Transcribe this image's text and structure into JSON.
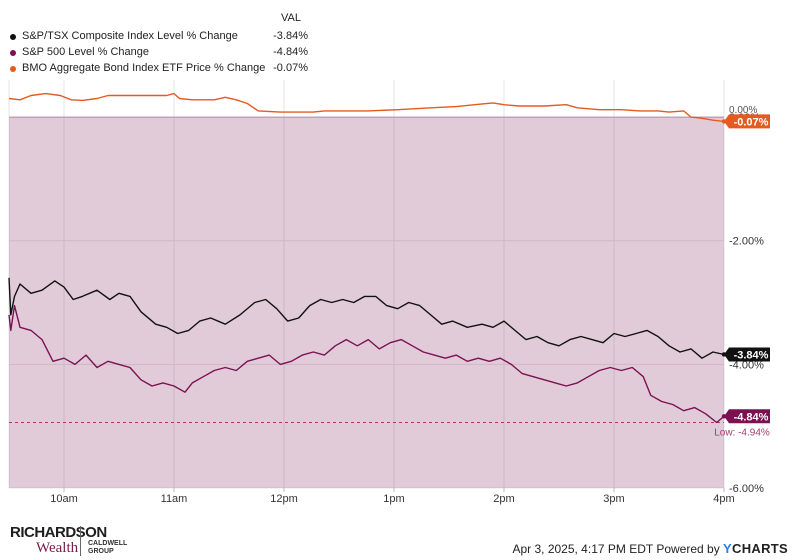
{
  "legend": {
    "header": "VAL",
    "items": [
      {
        "label": "S&P/TSX Composite Index Level % Change",
        "value": "-3.84%",
        "color": "#111111"
      },
      {
        "label": "S&P 500 Level % Change",
        "value": "-4.84%",
        "color": "#7b1151"
      },
      {
        "label": "BMO Aggregate Bond Index ETF Price % Change",
        "value": "-0.07%",
        "color": "#e55a1f"
      }
    ]
  },
  "chart_data": {
    "type": "line",
    "x_ticks": [
      "10am",
      "11am",
      "12pm",
      "1pm",
      "2pm",
      "3pm",
      "4pm"
    ],
    "y_ticks": [
      "0.00%",
      "-2.00%",
      "-4.00%",
      "-6.00%"
    ],
    "ylim": [
      -6.0,
      0.6
    ],
    "xlim": [
      "9:30",
      "16:00"
    ],
    "grid": true,
    "series": [
      {
        "name": "S&P/TSX Composite Index Level % Change",
        "color": "#111111",
        "end_label": "-3.84%",
        "points": [
          [
            "9:30",
            -2.6
          ],
          [
            "9:31",
            -3.2
          ],
          [
            "9:33",
            -2.9
          ],
          [
            "9:36",
            -2.7
          ],
          [
            "9:42",
            -2.85
          ],
          [
            "9:48",
            -2.8
          ],
          [
            "9:55",
            -2.65
          ],
          [
            "10:00",
            -2.75
          ],
          [
            "10:05",
            -2.95
          ],
          [
            "10:10",
            -2.9
          ],
          [
            "10:18",
            -2.8
          ],
          [
            "10:25",
            -2.95
          ],
          [
            "10:30",
            -2.85
          ],
          [
            "10:36",
            -2.9
          ],
          [
            "10:42",
            -3.15
          ],
          [
            "10:50",
            -3.35
          ],
          [
            "10:56",
            -3.4
          ],
          [
            "11:02",
            -3.5
          ],
          [
            "11:08",
            -3.45
          ],
          [
            "11:14",
            -3.3
          ],
          [
            "11:20",
            -3.25
          ],
          [
            "11:28",
            -3.35
          ],
          [
            "11:36",
            -3.2
          ],
          [
            "11:44",
            -3.0
          ],
          [
            "11:50",
            -2.95
          ],
          [
            "11:56",
            -3.1
          ],
          [
            "12:02",
            -3.3
          ],
          [
            "12:08",
            -3.25
          ],
          [
            "12:14",
            -3.05
          ],
          [
            "12:20",
            -2.95
          ],
          [
            "12:26",
            -3.0
          ],
          [
            "12:32",
            -2.95
          ],
          [
            "12:38",
            -3.0
          ],
          [
            "12:44",
            -2.9
          ],
          [
            "12:50",
            -2.9
          ],
          [
            "12:56",
            -3.05
          ],
          [
            "13:02",
            -3.1
          ],
          [
            "13:08",
            -3.0
          ],
          [
            "13:14",
            -3.05
          ],
          [
            "13:20",
            -3.2
          ],
          [
            "13:26",
            -3.35
          ],
          [
            "13:32",
            -3.3
          ],
          [
            "13:40",
            -3.4
          ],
          [
            "13:48",
            -3.35
          ],
          [
            "13:54",
            -3.4
          ],
          [
            "14:00",
            -3.3
          ],
          [
            "14:06",
            -3.45
          ],
          [
            "14:12",
            -3.6
          ],
          [
            "14:18",
            -3.55
          ],
          [
            "14:24",
            -3.65
          ],
          [
            "14:30",
            -3.7
          ],
          [
            "14:36",
            -3.6
          ],
          [
            "14:42",
            -3.55
          ],
          [
            "14:48",
            -3.6
          ],
          [
            "14:54",
            -3.65
          ],
          [
            "15:00",
            -3.5
          ],
          [
            "15:06",
            -3.55
          ],
          [
            "15:12",
            -3.5
          ],
          [
            "15:18",
            -3.45
          ],
          [
            "15:24",
            -3.55
          ],
          [
            "15:30",
            -3.7
          ],
          [
            "15:36",
            -3.8
          ],
          [
            "15:42",
            -3.75
          ],
          [
            "15:48",
            -3.9
          ],
          [
            "15:54",
            -3.8
          ],
          [
            "16:00",
            -3.84
          ]
        ]
      },
      {
        "name": "S&P 500 Level % Change",
        "color": "#7b1151",
        "end_label": "-4.84%",
        "points": [
          [
            "9:30",
            -3.2
          ],
          [
            "9:31",
            -3.45
          ],
          [
            "9:33",
            -3.05
          ],
          [
            "9:36",
            -3.4
          ],
          [
            "9:42",
            -3.45
          ],
          [
            "9:48",
            -3.6
          ],
          [
            "9:54",
            -3.95
          ],
          [
            "10:00",
            -3.9
          ],
          [
            "10:06",
            -4.0
          ],
          [
            "10:12",
            -3.85
          ],
          [
            "10:18",
            -4.05
          ],
          [
            "10:24",
            -3.95
          ],
          [
            "10:30",
            -4.0
          ],
          [
            "10:36",
            -4.05
          ],
          [
            "10:42",
            -4.25
          ],
          [
            "10:48",
            -4.35
          ],
          [
            "10:54",
            -4.3
          ],
          [
            "11:00",
            -4.35
          ],
          [
            "11:06",
            -4.45
          ],
          [
            "11:10",
            -4.3
          ],
          [
            "11:16",
            -4.2
          ],
          [
            "11:22",
            -4.1
          ],
          [
            "11:28",
            -4.05
          ],
          [
            "11:34",
            -4.1
          ],
          [
            "11:40",
            -3.95
          ],
          [
            "11:46",
            -3.9
          ],
          [
            "11:52",
            -3.85
          ],
          [
            "11:58",
            -4.0
          ],
          [
            "12:04",
            -3.95
          ],
          [
            "12:10",
            -3.85
          ],
          [
            "12:16",
            -3.8
          ],
          [
            "12:22",
            -3.85
          ],
          [
            "12:28",
            -3.7
          ],
          [
            "12:34",
            -3.6
          ],
          [
            "12:40",
            -3.7
          ],
          [
            "12:46",
            -3.6
          ],
          [
            "12:52",
            -3.75
          ],
          [
            "12:58",
            -3.65
          ],
          [
            "13:04",
            -3.6
          ],
          [
            "13:10",
            -3.7
          ],
          [
            "13:16",
            -3.8
          ],
          [
            "13:22",
            -3.85
          ],
          [
            "13:28",
            -3.9
          ],
          [
            "13:34",
            -3.85
          ],
          [
            "13:40",
            -3.95
          ],
          [
            "13:46",
            -3.9
          ],
          [
            "13:52",
            -3.95
          ],
          [
            "13:58",
            -3.9
          ],
          [
            "14:04",
            -4.0
          ],
          [
            "14:10",
            -4.15
          ],
          [
            "14:16",
            -4.2
          ],
          [
            "14:22",
            -4.25
          ],
          [
            "14:28",
            -4.3
          ],
          [
            "14:34",
            -4.35
          ],
          [
            "14:40",
            -4.3
          ],
          [
            "14:46",
            -4.2
          ],
          [
            "14:52",
            -4.1
          ],
          [
            "14:58",
            -4.05
          ],
          [
            "15:04",
            -4.1
          ],
          [
            "15:10",
            -4.05
          ],
          [
            "15:16",
            -4.2
          ],
          [
            "15:20",
            -4.5
          ],
          [
            "15:26",
            -4.6
          ],
          [
            "15:32",
            -4.65
          ],
          [
            "15:38",
            -4.75
          ],
          [
            "15:44",
            -4.7
          ],
          [
            "15:50",
            -4.8
          ],
          [
            "15:56",
            -4.94
          ],
          [
            "16:00",
            -4.84
          ]
        ]
      },
      {
        "name": "BMO Aggregate Bond Index ETF Price % Change",
        "color": "#e55a1f",
        "end_label": "-0.07%",
        "points": [
          [
            "9:30",
            0.3
          ],
          [
            "9:36",
            0.28
          ],
          [
            "9:42",
            0.35
          ],
          [
            "9:50",
            0.38
          ],
          [
            "9:58",
            0.35
          ],
          [
            "10:04",
            0.28
          ],
          [
            "10:10",
            0.27
          ],
          [
            "10:18",
            0.3
          ],
          [
            "10:24",
            0.35
          ],
          [
            "10:40",
            0.35
          ],
          [
            "10:56",
            0.35
          ],
          [
            "11:00",
            0.38
          ],
          [
            "11:03",
            0.3
          ],
          [
            "11:10",
            0.28
          ],
          [
            "11:22",
            0.28
          ],
          [
            "11:28",
            0.32
          ],
          [
            "11:34",
            0.28
          ],
          [
            "11:40",
            0.22
          ],
          [
            "11:46",
            0.1
          ],
          [
            "11:58",
            0.08
          ],
          [
            "12:16",
            0.08
          ],
          [
            "12:22",
            0.1
          ],
          [
            "12:46",
            0.1
          ],
          [
            "13:02",
            0.12
          ],
          [
            "13:20",
            0.15
          ],
          [
            "13:34",
            0.17
          ],
          [
            "13:44",
            0.2
          ],
          [
            "13:54",
            0.23
          ],
          [
            "14:00",
            0.2
          ],
          [
            "14:08",
            0.18
          ],
          [
            "14:22",
            0.18
          ],
          [
            "14:34",
            0.2
          ],
          [
            "14:40",
            0.15
          ],
          [
            "14:52",
            0.12
          ],
          [
            "15:04",
            0.12
          ],
          [
            "15:14",
            0.1
          ],
          [
            "15:24",
            0.1
          ],
          [
            "15:30",
            0.08
          ],
          [
            "15:38",
            0.1
          ],
          [
            "15:42",
            0.0
          ],
          [
            "15:48",
            -0.02
          ],
          [
            "15:54",
            -0.05
          ],
          [
            "16:00",
            -0.07
          ]
        ]
      }
    ],
    "low_marker": {
      "label": "Low: -4.94%",
      "value": -4.94
    }
  },
  "footer": {
    "brand_line1": "RICHARDSON",
    "brand_line2": "Wealth",
    "partner": [
      "CALDWELL",
      "GROUP"
    ],
    "timestamp": "Apr 3, 2025, 4:17 PM EDT Powered by",
    "ycharts_y": "Y",
    "ycharts_rest": "CHARTS",
    "ycharts_color": "#2a7de1"
  }
}
